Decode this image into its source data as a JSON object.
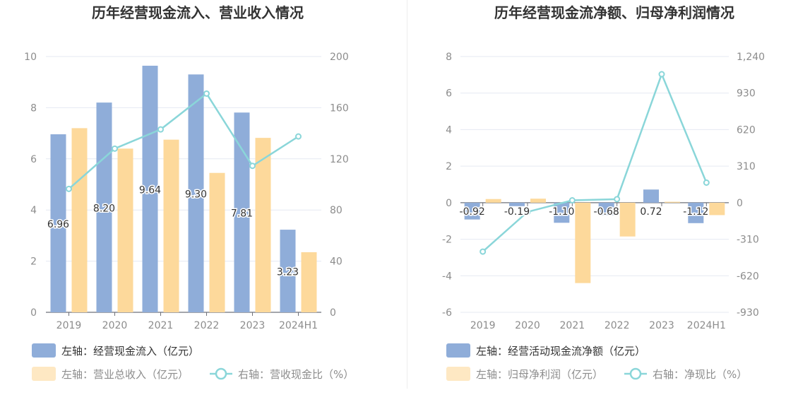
{
  "colors": {
    "blue": "#8fadd9",
    "orange": "#fdd99b",
    "line": "#8ad6d9",
    "grid": "#e5e9f2",
    "axis": "#6e7079",
    "title": "#333333",
    "tick": "#8c8c8c"
  },
  "chart_data": [
    {
      "type": "bar",
      "title": "历年经营现金流入、营业收入情况",
      "categories": [
        "2019",
        "2020",
        "2021",
        "2022",
        "2023",
        "2024H1"
      ],
      "left_axis": {
        "ylim": [
          0,
          10
        ],
        "ticks": [
          "0",
          "2",
          "4",
          "6",
          "8",
          "10"
        ]
      },
      "right_axis": {
        "ylim": [
          0,
          200
        ],
        "ticks": [
          "0",
          "40",
          "80",
          "120",
          "160",
          "200"
        ]
      },
      "series": [
        {
          "name": "左轴：经营现金流入（亿元）",
          "axis": "left",
          "kind": "bar",
          "color": "#8fadd9",
          "values": [
            6.96,
            8.2,
            9.64,
            9.3,
            7.81,
            3.23
          ],
          "labels": [
            "6.96",
            "8.20",
            "9.64",
            "9.30",
            "7.81",
            "3.23"
          ]
        },
        {
          "name": "左轴：营业总收入（亿元）",
          "axis": "left",
          "kind": "bar",
          "color": "#fdd99b",
          "values": [
            7.2,
            6.4,
            6.75,
            5.45,
            6.82,
            2.35
          ]
        },
        {
          "name": "右轴：营收现金比（%）",
          "axis": "right",
          "kind": "line",
          "color": "#8ad6d9",
          "values": [
            96.5,
            128,
            143,
            171,
            114.5,
            137.5
          ]
        }
      ],
      "legend": "bottom-left",
      "grid": true
    },
    {
      "type": "bar",
      "title": "历年经营现金流净额、归母净利润情况",
      "categories": [
        "2019",
        "2020",
        "2021",
        "2022",
        "2023",
        "2024H1"
      ],
      "left_axis": {
        "ylim": [
          -6,
          8
        ],
        "ticks": [
          "-6",
          "-4",
          "-2",
          "0",
          "2",
          "4",
          "6",
          "8"
        ]
      },
      "right_axis": {
        "ylim": [
          -930,
          1240
        ],
        "ticks": [
          "-930",
          "-620",
          "-310",
          "0",
          "310",
          "620",
          "930",
          "1,240"
        ]
      },
      "series": [
        {
          "name": "左轴：经营活动现金流净额（亿元）",
          "axis": "left",
          "kind": "bar",
          "color": "#8fadd9",
          "values": [
            -0.92,
            -0.19,
            -1.1,
            -0.68,
            0.72,
            -1.12
          ],
          "labels": [
            "-0.92",
            "-0.19",
            "-1.10",
            "-0.68",
            "0.72",
            "-1.12"
          ]
        },
        {
          "name": "左轴：归母净利润（亿元）",
          "axis": "left",
          "kind": "bar",
          "color": "#fdd99b",
          "values": [
            0.2,
            0.22,
            -4.4,
            -1.85,
            0.05,
            -0.68
          ]
        },
        {
          "name": "右轴：净现比（%）",
          "axis": "right",
          "kind": "line",
          "color": "#8ad6d9",
          "values": [
            -415,
            -78,
            20,
            30,
            1090,
            170
          ]
        }
      ],
      "legend": "bottom-left",
      "grid": true
    }
  ]
}
